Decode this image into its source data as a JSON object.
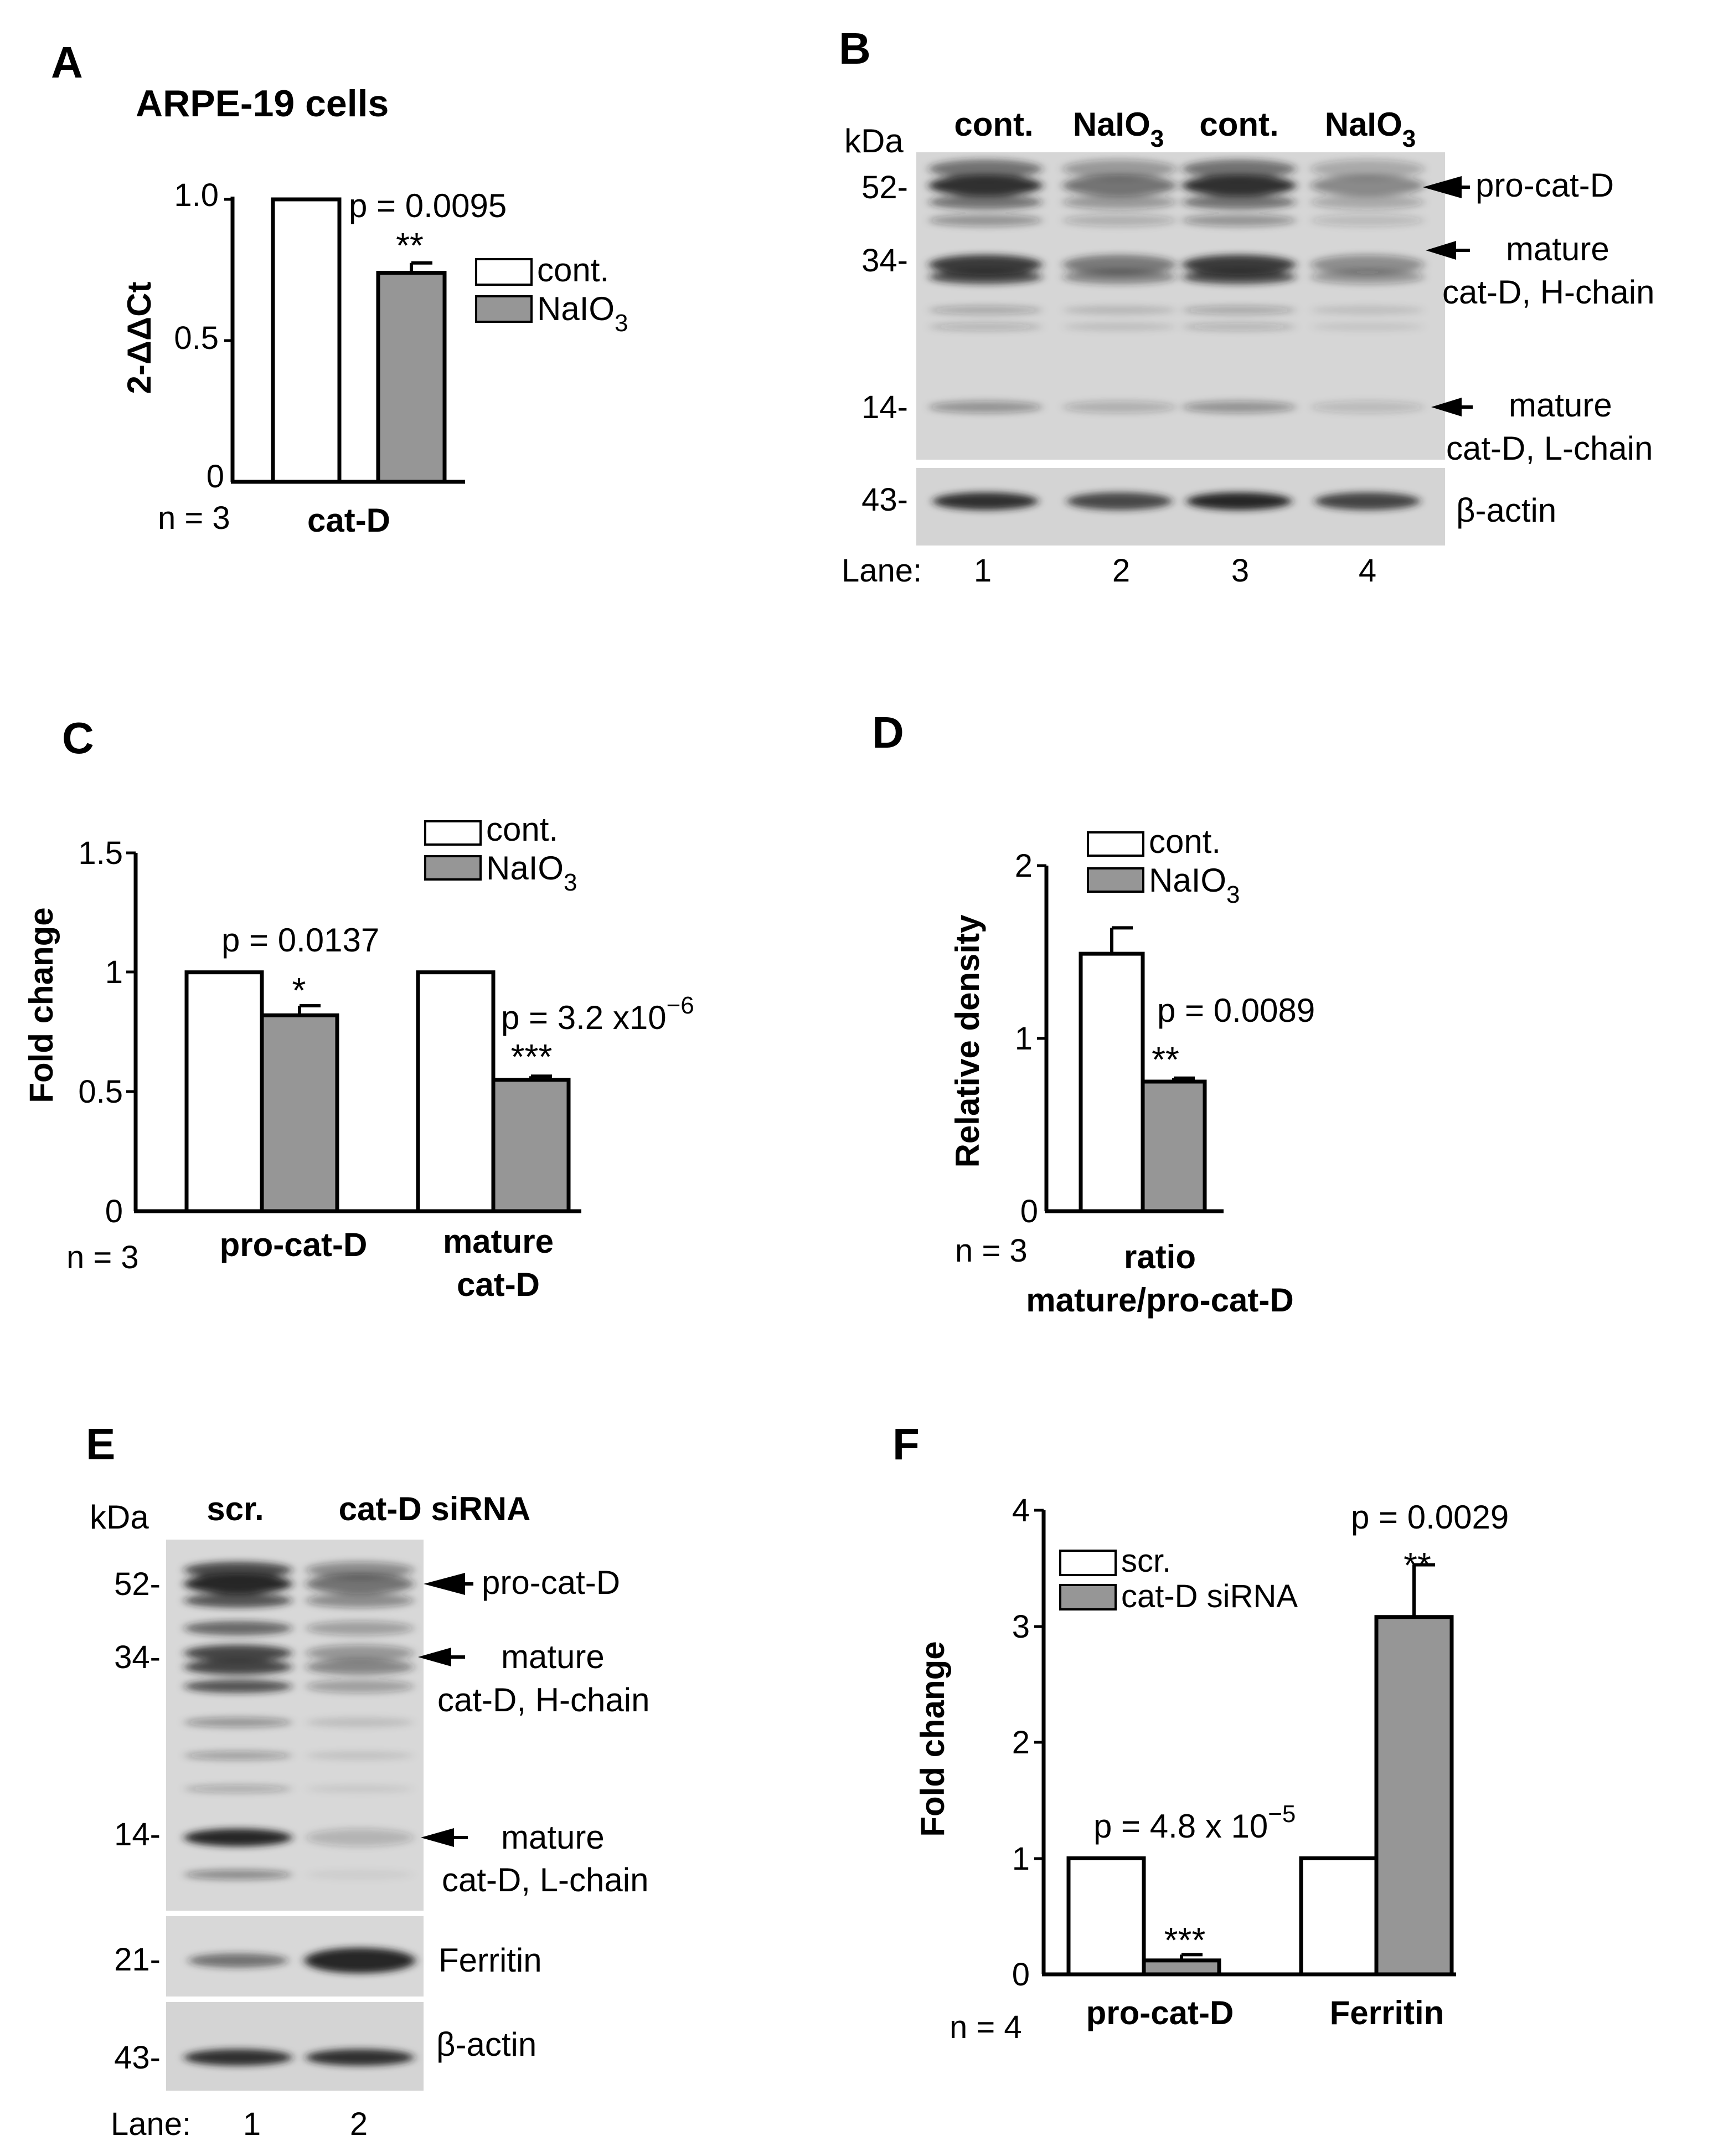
{
  "panel_a": {
    "letter": "A",
    "title": "ARPE-19 cells",
    "ylabel": "2-ΔΔCt",
    "n_label": "n = 3",
    "pvalue": "p = 0.0095",
    "stars": "**",
    "legend": [
      "cont.",
      "NaIO",
      "3"
    ],
    "yticks": [
      "1.0",
      "0.5",
      "0"
    ]
  },
  "panel_b": {
    "letter": "B",
    "kda": "kDa",
    "lane_headers": [
      "cont.",
      "NaIO",
      "3",
      "cont.",
      "NaIO",
      "3"
    ],
    "markers": [
      "52-",
      "34-",
      "14-",
      "43-"
    ],
    "labels": [
      "pro-cat-D",
      "mature",
      "cat-D, H-chain",
      "mature",
      "cat-D, L-chain",
      "β-actin"
    ],
    "lane_caption": "Lane:",
    "lanes": [
      "1",
      "2",
      "3",
      "4"
    ]
  },
  "panel_c": {
    "letter": "C",
    "ylabel": "Fold change",
    "n_label": "n = 3",
    "p1": "p = 0.0137",
    "stars1": "*",
    "p2": "p = 3.2 x10",
    "p2_exp": "−6",
    "stars2": "***",
    "legend": [
      "cont.",
      "NaIO",
      "3"
    ],
    "yticks": [
      "1.5",
      "1",
      "0.5",
      "0"
    ],
    "cat1": "pro-cat-D",
    "cat2a": "mature",
    "cat2b": "cat-D"
  },
  "panel_d": {
    "letter": "D",
    "ylabel": "Relative density",
    "n_label": "n = 3",
    "pvalue": "p = 0.0089",
    "stars": "**",
    "legend": [
      "cont.",
      "NaIO",
      "3"
    ],
    "yticks": [
      "2",
      "1",
      "0"
    ],
    "cat1": "ratio",
    "cat2": "mature/pro-cat-D"
  },
  "panel_e": {
    "letter": "E",
    "kda": "kDa",
    "lane_headers": [
      "scr.",
      "cat-D siRNA"
    ],
    "markers": [
      "52-",
      "34-",
      "14-",
      "21-",
      "43-"
    ],
    "labels": [
      "pro-cat-D",
      "mature",
      "cat-D, H-chain",
      "mature",
      "cat-D, L-chain",
      "Ferritin",
      "β-actin"
    ],
    "lane_caption": "Lane:",
    "lanes": [
      "1",
      "2"
    ]
  },
  "panel_f": {
    "letter": "F",
    "ylabel": "Fold change",
    "n_label": "n = 4",
    "p1": "p = 4.8 x 10",
    "p1_exp": "−5",
    "stars1": "***",
    "p2": "p = 0.0029",
    "stars2": "**",
    "legend": [
      "scr.",
      "cat-D siRNA"
    ],
    "yticks": [
      "4",
      "3",
      "2",
      "1",
      "0"
    ],
    "cat1": "pro-cat-D",
    "cat2": "Ferritin"
  },
  "colors": {
    "control": "#ffffff",
    "treated": "#969696",
    "blot_bg": "#d6d6d6",
    "band": "#1e1e1e"
  },
  "chart_data": [
    {
      "type": "bar",
      "title": "ARPE-19 cells",
      "ylabel": "2-ΔΔCt",
      "categories": [
        "cat-D"
      ],
      "ylim": [
        0,
        1.0
      ],
      "series": [
        {
          "name": "cont.",
          "values": [
            1.0
          ]
        },
        {
          "name": "NaIO3",
          "values": [
            0.74
          ],
          "error": [
            0.035
          ]
        }
      ]
    },
    {
      "type": "bar",
      "ylabel": "Fold change",
      "categories": [
        "pro-cat-D",
        "mature cat-D"
      ],
      "ylim": [
        0,
        1.5
      ],
      "series": [
        {
          "name": "cont.",
          "values": [
            1.0,
            1.0
          ]
        },
        {
          "name": "NaIO3",
          "values": [
            0.82,
            0.55
          ],
          "error": [
            0.04,
            0.015
          ]
        }
      ]
    },
    {
      "type": "bar",
      "ylabel": "Relative density",
      "categories": [
        "ratio mature/pro-cat-D"
      ],
      "ylim": [
        0,
        2
      ],
      "series": [
        {
          "name": "cont.",
          "values": [
            1.49
          ],
          "error": [
            0.15
          ]
        },
        {
          "name": "NaIO3",
          "values": [
            0.75
          ],
          "error": [
            0.02
          ]
        }
      ]
    },
    {
      "type": "bar",
      "ylabel": "Fold change",
      "categories": [
        "pro-cat-D",
        "Ferritin"
      ],
      "ylim": [
        0,
        4
      ],
      "series": [
        {
          "name": "scr.",
          "values": [
            1.0,
            1.0
          ]
        },
        {
          "name": "cat-D siRNA",
          "values": [
            0.12,
            3.08
          ],
          "error": [
            0.05,
            0.45
          ]
        }
      ]
    }
  ]
}
